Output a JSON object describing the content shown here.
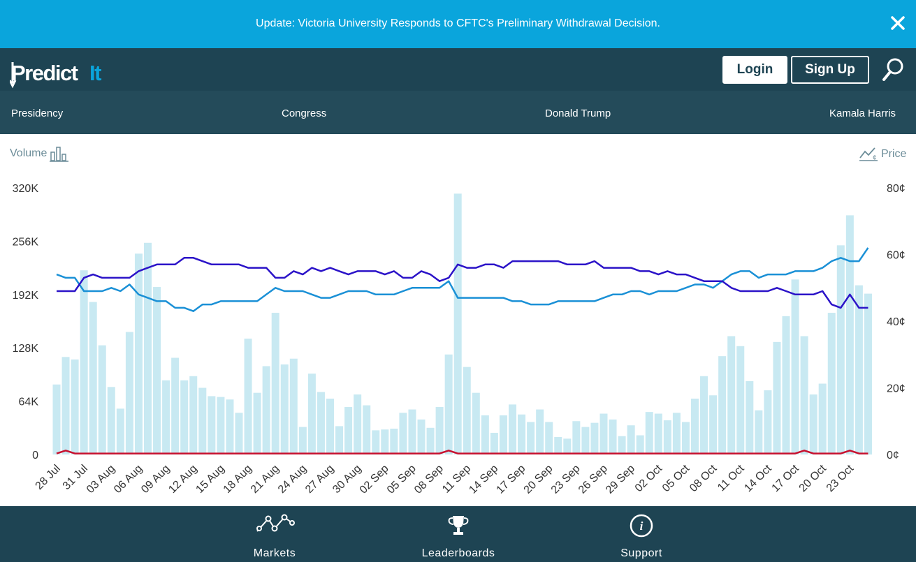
{
  "banner": {
    "text": "Update: Victoria University Responds to CFTC's Preliminary Withdrawal Decision."
  },
  "header": {
    "logo_text": "PredictIt",
    "login_label": "Login",
    "signup_label": "Sign Up"
  },
  "nav": {
    "items": [
      "Presidency",
      "Congress",
      "Donald Trump",
      "Kamala Harris"
    ]
  },
  "chart_controls": {
    "volume_label": "Volume",
    "price_label": "Price"
  },
  "footer": {
    "items": [
      {
        "label": "Markets",
        "icon": "markets-icon"
      },
      {
        "label": "Leaderboards",
        "icon": "trophy-icon"
      },
      {
        "label": "Support",
        "icon": "info-icon"
      }
    ]
  },
  "colors": {
    "banner": "#0aa5dc",
    "header": "#1e4453",
    "nav": "#244b5a",
    "bar": "#c8e9f2",
    "series_dark": "#2b13c8",
    "series_light": "#1a90d6",
    "series_red": "#c8102e"
  },
  "chart_data": {
    "type": "bar+line",
    "x_start": "28 Jul",
    "x_tick_labels": [
      "28 Jul",
      "31 Jul",
      "03 Aug",
      "06 Aug",
      "09 Aug",
      "12 Aug",
      "15 Aug",
      "18 Aug",
      "21 Aug",
      "24 Aug",
      "27 Aug",
      "30 Aug",
      "02 Sep",
      "05 Sep",
      "08 Sep",
      "11 Sep",
      "14 Sep",
      "17 Sep",
      "20 Sep",
      "23 Sep",
      "26 Sep",
      "29 Sep",
      "02 Oct",
      "05 Oct",
      "08 Oct",
      "11 Oct",
      "14 Oct",
      "17 Oct",
      "20 Oct",
      "23 Oct"
    ],
    "y_left_ticks": [
      "0",
      "64K",
      "128K",
      "192K",
      "256K",
      "320K"
    ],
    "y_left_range": [
      0,
      320000
    ],
    "y_right_ticks": [
      "0¢",
      "20¢",
      "40¢",
      "60¢",
      "80¢"
    ],
    "y_right_range": [
      0,
      80
    ],
    "volume": [
      84000,
      117000,
      114000,
      221000,
      183000,
      131000,
      81000,
      55000,
      147000,
      241000,
      254000,
      201000,
      89000,
      116000,
      89000,
      94000,
      80000,
      70000,
      69000,
      66000,
      50000,
      139000,
      74000,
      106000,
      170000,
      108000,
      115000,
      33000,
      97000,
      75000,
      67000,
      34000,
      57000,
      72000,
      59000,
      29000,
      30000,
      31000,
      50000,
      54000,
      42000,
      32000,
      57000,
      120000,
      313000,
      105000,
      74000,
      47000,
      26000,
      47000,
      60000,
      48000,
      39000,
      54000,
      39000,
      21000,
      19000,
      40000,
      33000,
      38000,
      49000,
      42000,
      22000,
      35000,
      23000,
      51000,
      49000,
      41000,
      50000,
      39000,
      67000,
      94000,
      71000,
      118000,
      142000,
      130000,
      88000,
      53000,
      77000,
      135000,
      166000,
      210000,
      142000,
      72000,
      85000,
      170000,
      251000,
      287000,
      203000,
      193000
    ],
    "series_dark": [
      49,
      49,
      49,
      53,
      54,
      53,
      53,
      53,
      53,
      55,
      56,
      57,
      57,
      57,
      59,
      59,
      58,
      57,
      57,
      57,
      57,
      56,
      56,
      56,
      53,
      53,
      55,
      54,
      56,
      55,
      56,
      55,
      54,
      55,
      55,
      55,
      54,
      55,
      53,
      53,
      55,
      54,
      52,
      53,
      57,
      56,
      56,
      57,
      57,
      56,
      58,
      58,
      58,
      58,
      58,
      58,
      57,
      57,
      57,
      58,
      56,
      56,
      56,
      56,
      55,
      55,
      54,
      55,
      54,
      54,
      53,
      52,
      52,
      52,
      50,
      49,
      49,
      49,
      49,
      50,
      49,
      48,
      48,
      48,
      49,
      45,
      44,
      48,
      44,
      44
    ],
    "series_light": [
      54,
      53,
      53,
      49,
      49,
      49,
      50,
      49,
      51,
      48,
      47,
      46,
      46,
      44,
      44,
      43,
      45,
      45,
      46,
      46,
      46,
      46,
      46,
      48,
      50,
      49,
      49,
      49,
      48,
      47,
      47,
      48,
      49,
      49,
      49,
      48,
      48,
      48,
      49,
      50,
      50,
      50,
      50,
      52,
      47,
      47,
      47,
      47,
      47,
      47,
      46,
      46,
      45,
      45,
      45,
      46,
      46,
      46,
      46,
      46,
      47,
      48,
      48,
      49,
      49,
      48,
      49,
      49,
      49,
      50,
      51,
      51,
      50,
      52,
      54,
      55,
      55,
      53,
      54,
      54,
      54,
      55,
      55,
      55,
      56,
      58,
      59,
      58,
      58,
      62
    ],
    "series_red": [
      0.3,
      1.2,
      0.3,
      0.3,
      0.3,
      0.3,
      0.3,
      0.3,
      0.3,
      0.3,
      0.3,
      0.3,
      0.3,
      0.3,
      0.3,
      0.3,
      0.3,
      0.3,
      0.3,
      0.3,
      0.3,
      0.3,
      0.3,
      0.3,
      0.3,
      0.3,
      0.3,
      0.3,
      0.3,
      0.3,
      0.3,
      0.3,
      0.3,
      0.3,
      0.3,
      0.3,
      0.3,
      0.3,
      0.3,
      0.3,
      0.3,
      0.3,
      0.3,
      1.2,
      0.3,
      0.3,
      0.3,
      0.3,
      0.3,
      0.3,
      0.3,
      0.3,
      0.3,
      0.3,
      0.3,
      0.3,
      0.3,
      0.3,
      0.3,
      0.3,
      0.3,
      0.3,
      0.3,
      0.3,
      0.3,
      0.3,
      0.3,
      0.3,
      0.3,
      0.3,
      0.3,
      0.3,
      0.3,
      0.3,
      0.3,
      0.3,
      0.3,
      0.3,
      0.3,
      0.3,
      0.3,
      0.3,
      1.2,
      0.3,
      0.3,
      0.3,
      0.3,
      1.2,
      0.3,
      0.3
    ]
  }
}
